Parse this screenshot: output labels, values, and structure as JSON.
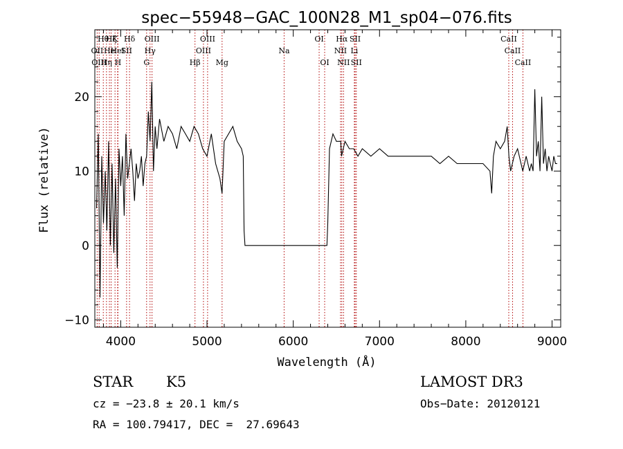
{
  "chart_data": {
    "type": "line",
    "title": "spec−55948−GAC_100N28_M1_sp04−076.fits",
    "xlabel": "Wavelength (Å)",
    "ylabel": "Flux (relative)",
    "xlim": [
      3700,
      9100
    ],
    "ylim": [
      -11,
      29
    ],
    "xticks": [
      4000,
      5000,
      6000,
      7000,
      8000,
      9000
    ],
    "yticks": [
      -10,
      0,
      10,
      20
    ],
    "grid": false,
    "line_color": "#000000",
    "marker_color": "#b00000",
    "series": [
      {
        "x": [
          3720,
          3740,
          3760,
          3780,
          3800,
          3820,
          3840,
          3860,
          3880,
          3900,
          3920,
          3940,
          3960,
          3980,
          4000,
          4020,
          4040,
          4060,
          4080,
          4100,
          4120,
          4140,
          4160,
          4180,
          4200,
          4220,
          4240,
          4260,
          4280,
          4300,
          4320,
          4340,
          4360,
          4380,
          4400,
          4420,
          4450,
          4500,
          4550,
          4600,
          4650,
          4700,
          4750,
          4800,
          4850,
          4900,
          4950,
          5000,
          5050,
          5100,
          5150,
          5175,
          5200,
          5250,
          5300,
          5350,
          5400,
          5420,
          5430,
          5440,
          6300,
          6350,
          6390,
          6400,
          6420,
          6440,
          6460,
          6500,
          6550,
          6560,
          6600,
          6650,
          6700,
          6750,
          6800,
          6900,
          7000,
          7100,
          7200,
          7300,
          7400,
          7500,
          7600,
          7700,
          7800,
          7900,
          8000,
          8100,
          8200,
          8280,
          8300,
          8320,
          8350,
          8400,
          8450,
          8480,
          8500,
          8520,
          8540,
          8560,
          8600,
          8640,
          8660,
          8680,
          8700,
          8720,
          8740,
          8760,
          8780,
          8800,
          8820,
          8840,
          8860,
          8880,
          8900,
          8920,
          8940,
          8960,
          8980,
          9000,
          9020,
          9040,
          9060
        ],
        "y": [
          5,
          15,
          -7,
          12,
          3,
          10,
          2,
          14,
          0,
          11,
          -1,
          9,
          -3,
          13,
          8,
          12,
          4,
          15,
          9,
          11,
          13,
          10,
          6,
          11,
          9,
          10,
          12,
          8,
          11,
          12,
          18,
          14,
          22,
          10,
          16,
          13,
          17,
          14,
          16,
          15,
          13,
          16,
          15,
          14,
          16,
          15,
          13,
          12,
          15,
          11,
          9,
          7,
          14,
          15,
          16,
          14,
          13,
          12,
          2,
          0,
          0,
          0,
          0,
          3,
          13,
          14,
          15,
          14,
          14,
          12,
          14,
          13,
          13,
          12,
          13,
          12,
          13,
          12,
          12,
          12,
          12,
          12,
          12,
          11,
          12,
          11,
          11,
          11,
          11,
          10,
          7,
          12,
          14,
          13,
          14,
          16,
          12,
          10,
          11,
          12,
          13,
          11,
          10,
          11,
          12,
          11,
          10,
          11,
          10,
          21,
          12,
          14,
          10,
          20,
          11,
          13,
          10,
          12,
          11,
          10,
          12,
          11,
          11
        ]
      }
    ],
    "line_markers": [
      {
        "wl": 3727,
        "label": "OII",
        "row": 2
      },
      {
        "wl": 3750,
        "label": "OIII",
        "row": 3
      },
      {
        "wl": 3798,
        "label": "Hθ",
        "row": 1
      },
      {
        "wl": 3835,
        "label": "Hη",
        "row": 3
      },
      {
        "wl": 3869,
        "label": "He",
        "row": 2
      },
      {
        "wl": 3889,
        "label": "Hζ",
        "row": 1
      },
      {
        "wl": 3934,
        "label": "K",
        "row": 1
      },
      {
        "wl": 3964,
        "label": "HeI",
        "row": 2
      },
      {
        "wl": 3968,
        "label": "H",
        "row": 3
      },
      {
        "wl": 4068,
        "label": "SII",
        "row": 2
      },
      {
        "wl": 4102,
        "label": "Hδ",
        "row": 1
      },
      {
        "wl": 4300,
        "label": "G",
        "row": 3
      },
      {
        "wl": 4340,
        "label": "Hγ",
        "row": 2
      },
      {
        "wl": 4363,
        "label": "OIII",
        "row": 1
      },
      {
        "wl": 4861,
        "label": "Hβ",
        "row": 3
      },
      {
        "wl": 4959,
        "label": "OIII",
        "row": 2
      },
      {
        "wl": 5007,
        "label": "OIII",
        "row": 1
      },
      {
        "wl": 5175,
        "label": "Mg",
        "row": 3
      },
      {
        "wl": 5894,
        "label": "Na",
        "row": 2
      },
      {
        "wl": 6300,
        "label": "OI",
        "row": 1
      },
      {
        "wl": 6364,
        "label": "OI",
        "row": 3
      },
      {
        "wl": 6548,
        "label": "NII",
        "row": 2
      },
      {
        "wl": 6563,
        "label": "Hα",
        "row": 1
      },
      {
        "wl": 6583,
        "label": "NII",
        "row": 3
      },
      {
        "wl": 6708,
        "label": "Li",
        "row": 2
      },
      {
        "wl": 6717,
        "label": "SII",
        "row": 1
      },
      {
        "wl": 6731,
        "label": "SII",
        "row": 3
      },
      {
        "wl": 8498,
        "label": "CaII",
        "row": 1
      },
      {
        "wl": 8542,
        "label": "CaII",
        "row": 2
      },
      {
        "wl": 8662,
        "label": "CaII",
        "row": 3
      }
    ]
  },
  "info": {
    "class": "STAR",
    "subclass": "K5",
    "survey": "LAMOST DR3",
    "cz": "cz = −23.8 ± 20.1 km/s",
    "obs_date": "Obs−Date: 20120121",
    "radec": "RA = 100.79417, DEC =  27.69643"
  }
}
